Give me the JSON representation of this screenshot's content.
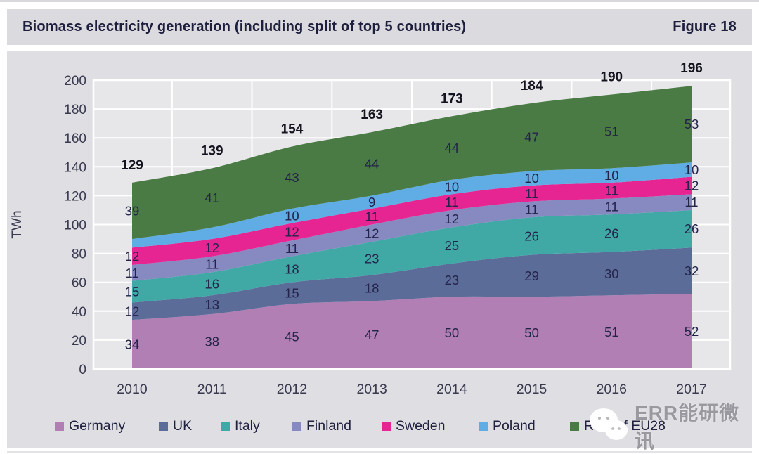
{
  "chart_data": {
    "type": "area",
    "stacked": true,
    "title": "Biomass electricity generation (including split of top 5 countries)",
    "figure_label": "Figure 18",
    "ylabel": "TWh",
    "ylim": [
      0,
      200
    ],
    "ytick_step": 20,
    "grid": true,
    "legend_position": "bottom",
    "x": [
      "2010",
      "2011",
      "2012",
      "2013",
      "2014",
      "2015",
      "2016",
      "2017"
    ],
    "series": [
      {
        "name": "Germany",
        "color": "#b27fb4",
        "values": [
          34,
          38,
          45,
          47,
          50,
          50,
          51,
          52
        ],
        "labels": [
          "34",
          "38",
          "45",
          "47",
          "50",
          "50",
          "51",
          "52"
        ]
      },
      {
        "name": "UK",
        "color": "#5c6c99",
        "values": [
          12,
          13,
          15,
          18,
          23,
          29,
          30,
          32
        ],
        "labels": [
          "12",
          "13",
          "15",
          "18",
          "23",
          "29",
          "30",
          "32"
        ]
      },
      {
        "name": "Italy",
        "color": "#41a9a5",
        "values": [
          15,
          16,
          18,
          23,
          25,
          26,
          26,
          26
        ],
        "labels": [
          "15",
          "16",
          "18",
          "23",
          "25",
          "26",
          "26",
          "26"
        ]
      },
      {
        "name": "Finland",
        "color": "#868ac0",
        "values": [
          11,
          11,
          11,
          12,
          12,
          11,
          11,
          11
        ],
        "labels": [
          "11",
          "11",
          "11",
          "12",
          "12",
          "11",
          "11",
          "11"
        ]
      },
      {
        "name": "Sweden",
        "color": "#e62592",
        "values": [
          12,
          12,
          12,
          11,
          11,
          11,
          11,
          12
        ],
        "labels": [
          "12",
          "12",
          "12",
          "11",
          "11",
          "11",
          "11",
          "12"
        ]
      },
      {
        "name": "Poland",
        "color": "#5fade4",
        "values": [
          6,
          8,
          10,
          9,
          10,
          10,
          10,
          10
        ],
        "labels": [
          "",
          "",
          "10",
          "9",
          "10",
          "10",
          "10",
          "10"
        ]
      },
      {
        "name": "Rest of EU28",
        "color": "#4a7b44",
        "values": [
          39,
          41,
          43,
          44,
          44,
          47,
          51,
          53
        ],
        "labels": [
          "39",
          "41",
          "43",
          "44",
          "44",
          "47",
          "51",
          "53"
        ]
      }
    ],
    "totals": [
      "129",
      "139",
      "154",
      "163",
      "173",
      "184",
      "190",
      "196"
    ]
  },
  "watermark": {
    "text": "ERR能研微讯"
  }
}
